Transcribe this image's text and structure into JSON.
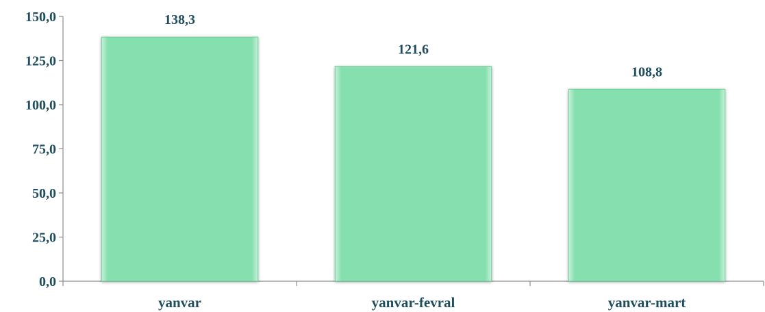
{
  "colors": {
    "bar_fill": "#86dfae",
    "bar_edge": "#5fc68c",
    "text": "#1f4e5f",
    "axis": "#8c8c8c"
  },
  "chart_data": {
    "type": "bar",
    "title": "",
    "xlabel": "",
    "ylabel": "",
    "categories": [
      "yanvar",
      "yanvar-fevral",
      "yanvar-mart"
    ],
    "values": [
      138.3,
      121.6,
      108.8
    ],
    "value_labels": [
      "138,3",
      "121,6",
      "108,8"
    ],
    "ylim": [
      0,
      150
    ],
    "yticks": [
      0,
      25,
      50,
      75,
      100,
      125,
      150
    ],
    "ytick_labels": [
      "0,0",
      "25,0",
      "50,0",
      "75,0",
      "100,0",
      "125,0",
      "150,0"
    ],
    "grid": false,
    "legend": "none"
  }
}
